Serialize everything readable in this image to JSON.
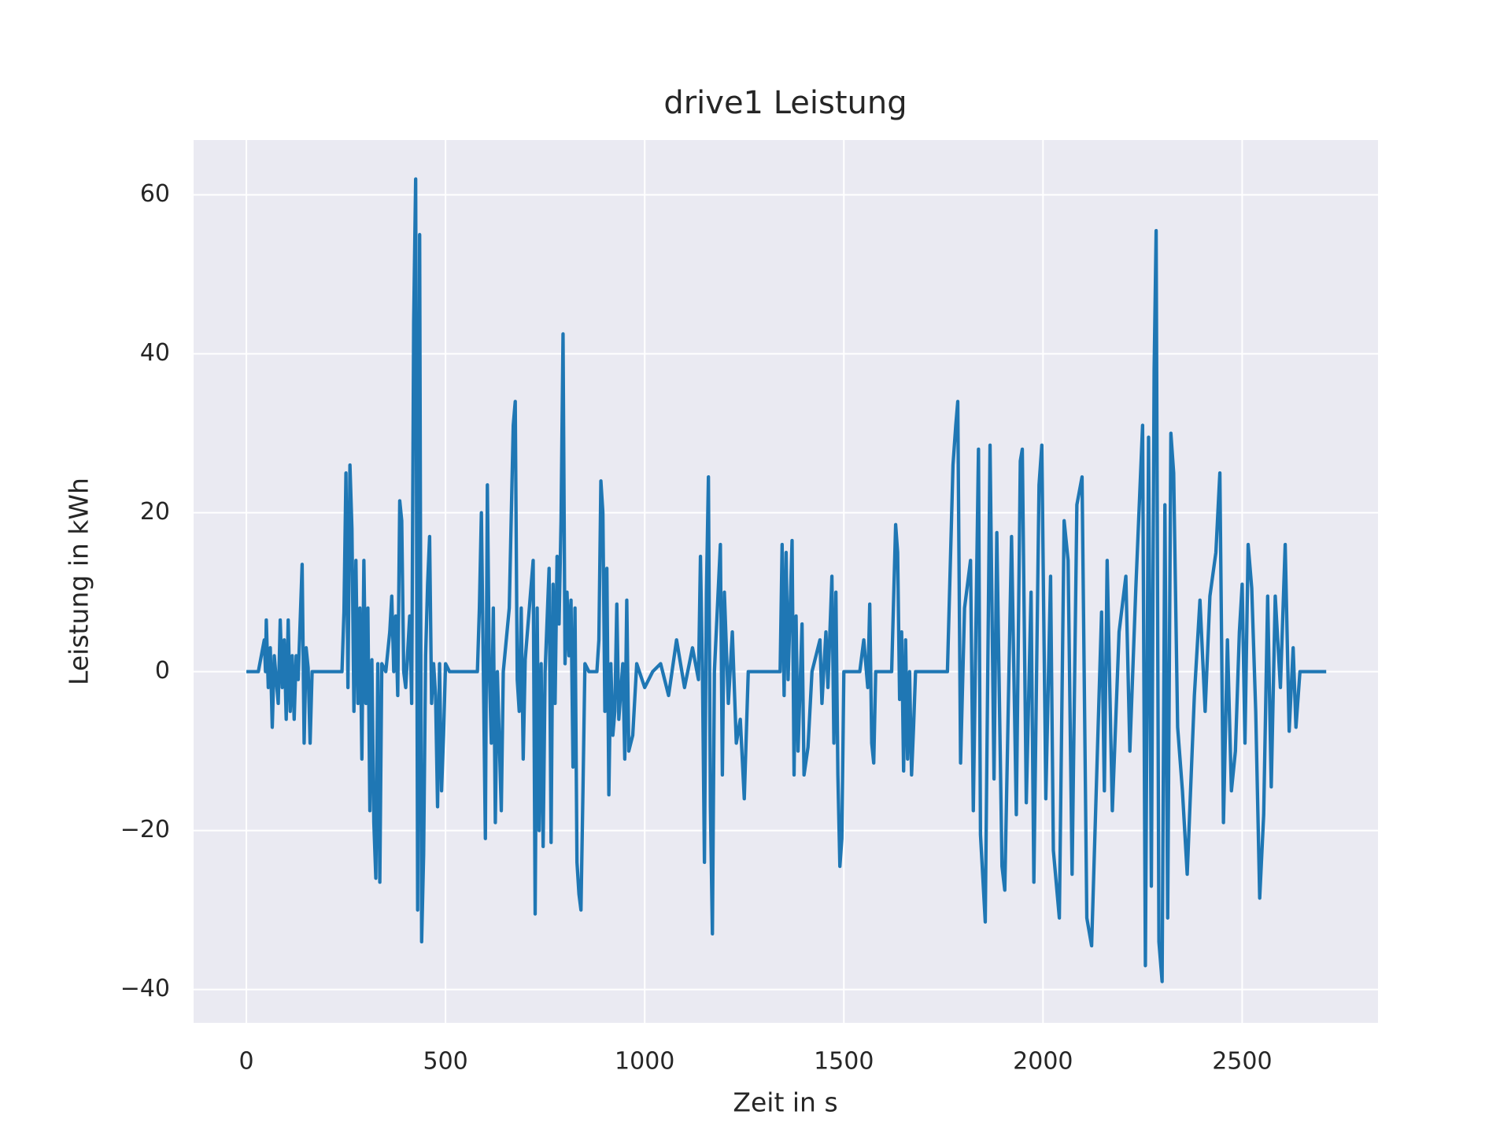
{
  "chart_data": {
    "type": "line",
    "title": "drive1 Leistung",
    "x_label": "Zeit in s",
    "y_label": "Leistung in kWh",
    "x": [
      0,
      30,
      45,
      48,
      50,
      55,
      60,
      65,
      70,
      80,
      85,
      90,
      95,
      100,
      105,
      110,
      115,
      120,
      125,
      130,
      140,
      145,
      150,
      155,
      160,
      165,
      175,
      240,
      245,
      250,
      255,
      260,
      265,
      270,
      275,
      280,
      285,
      290,
      295,
      300,
      305,
      310,
      315,
      320,
      325,
      330,
      335,
      340,
      350,
      360,
      365,
      370,
      375,
      380,
      385,
      390,
      395,
      400,
      410,
      415,
      420,
      425,
      430,
      435,
      440,
      445,
      450,
      455,
      460,
      465,
      470,
      475,
      480,
      485,
      490,
      495,
      500,
      510,
      580,
      585,
      590,
      595,
      600,
      605,
      610,
      615,
      620,
      625,
      630,
      640,
      645,
      660,
      665,
      670,
      675,
      680,
      685,
      690,
      695,
      700,
      720,
      725,
      730,
      735,
      740,
      745,
      750,
      760,
      765,
      770,
      775,
      780,
      785,
      790,
      795,
      800,
      805,
      810,
      815,
      820,
      825,
      830,
      835,
      840,
      845,
      850,
      860,
      880,
      885,
      890,
      895,
      900,
      905,
      910,
      915,
      920,
      925,
      930,
      935,
      945,
      950,
      955,
      960,
      970,
      980,
      1000,
      1020,
      1040,
      1060,
      1080,
      1100,
      1120,
      1135,
      1140,
      1145,
      1150,
      1155,
      1160,
      1165,
      1170,
      1175,
      1190,
      1195,
      1200,
      1210,
      1220,
      1230,
      1240,
      1250,
      1260,
      1280,
      1340,
      1345,
      1350,
      1355,
      1360,
      1370,
      1375,
      1380,
      1385,
      1395,
      1400,
      1410,
      1420,
      1440,
      1445,
      1455,
      1460,
      1470,
      1475,
      1480,
      1485,
      1490,
      1495,
      1500,
      1540,
      1550,
      1560,
      1565,
      1570,
      1575,
      1580,
      1620,
      1630,
      1635,
      1640,
      1645,
      1650,
      1655,
      1660,
      1665,
      1670,
      1675,
      1680,
      1760,
      1774,
      1781,
      1786,
      1793,
      1803,
      1818,
      1825,
      1838,
      1843,
      1855,
      1867,
      1877,
      1884,
      1897,
      1904,
      1921,
      1933,
      1943,
      1948,
      1958,
      1970,
      1977,
      1990,
      1997,
      2007,
      2019,
      2026,
      2041,
      2053,
      2063,
      2073,
      2085,
      2098,
      2110,
      2122,
      2147,
      2154,
      2161,
      2174,
      2191,
      2208,
      2218,
      2233,
      2250,
      2257,
      2265,
      2272,
      2279,
      2284,
      2291,
      2299,
      2306,
      2313,
      2321,
      2328,
      2338,
      2350,
      2362,
      2380,
      2394,
      2407,
      2419,
      2434,
      2444,
      2453,
      2463,
      2473,
      2483,
      2493,
      2500,
      2507,
      2515,
      2524,
      2534,
      2544,
      2554,
      2564,
      2573,
      2583,
      2596,
      2608,
      2618,
      2628,
      2635,
      2645,
      2711
    ],
    "values": [
      0,
      0,
      4,
      0,
      6.5,
      -2,
      3,
      -7,
      2,
      -4,
      6.5,
      -2,
      4,
      -6,
      6.5,
      -5,
      2,
      -6,
      2,
      -1,
      13.5,
      -9,
      3,
      0.5,
      -9,
      0,
      0,
      0,
      7.5,
      25,
      -2,
      26,
      18,
      -5,
      14,
      -4,
      8,
      -11,
      14,
      -4,
      8,
      -17.5,
      1.5,
      -19,
      -26,
      1,
      -26.5,
      1,
      0,
      5,
      9.5,
      0,
      7,
      -3,
      21.5,
      19,
      0,
      -2,
      7,
      -4,
      44,
      62,
      -30,
      55,
      -34,
      -23,
      2,
      11,
      17,
      -4,
      1,
      -3,
      -17,
      1,
      -15,
      -8,
      1,
      0,
      0,
      8,
      20,
      0,
      -21,
      23.5,
      0,
      -9,
      8,
      -19,
      0,
      -17.5,
      0,
      8,
      19.5,
      31,
      34,
      -1,
      -5,
      8,
      -11,
      1.5,
      14,
      -30.5,
      8,
      -20,
      1,
      -22,
      0,
      13,
      -21.5,
      11,
      -4,
      14.5,
      6,
      19,
      42.5,
      1,
      10,
      2,
      9,
      -12,
      8,
      -24,
      -28,
      -30,
      -15,
      1,
      0,
      0,
      4,
      24,
      20,
      -5,
      13,
      -15.5,
      1,
      -8,
      -5,
      8.5,
      -6,
      1,
      -11,
      9,
      -10,
      -8,
      1,
      -2,
      0,
      1,
      -3,
      4,
      -2,
      3,
      -1,
      14.5,
      0,
      -24,
      10,
      24.5,
      -17,
      -33,
      0,
      16,
      -13,
      10,
      -4,
      5,
      -9,
      -6,
      -16,
      0,
      0,
      0,
      16,
      -3,
      15,
      -1,
      16.5,
      -13,
      7,
      -10,
      6,
      -13,
      -9.5,
      0,
      4,
      -4,
      5,
      -2,
      12,
      -9,
      10,
      -13,
      -24.5,
      -21,
      0,
      0,
      4,
      -2,
      8.5,
      -9,
      -11.5,
      0,
      0,
      18.5,
      15,
      -3.5,
      5,
      -12.5,
      4,
      -11,
      0,
      -13,
      -7,
      0,
      0,
      26,
      31,
      34,
      -11.5,
      8,
      14,
      -17.5,
      28,
      -20.5,
      -31.5,
      28.5,
      -13.5,
      17.5,
      -24.5,
      -27.5,
      17,
      -18,
      26.5,
      28,
      -16.5,
      10,
      -26.5,
      23.5,
      28.5,
      -16,
      12,
      -22.5,
      -31,
      19,
      14,
      -25.5,
      21,
      24.5,
      -31,
      -34.5,
      7.5,
      -15,
      14,
      -17.5,
      5,
      12,
      -10,
      10.5,
      31,
      -37,
      29.5,
      -27,
      38,
      55.5,
      -34,
      -39,
      21,
      -31,
      30,
      25,
      -7,
      -15,
      -25.5,
      -3,
      9,
      -5,
      9.5,
      15,
      25,
      -19,
      4,
      -15,
      -10,
      5,
      11,
      -9,
      16,
      10.5,
      -5,
      -28.5,
      -18,
      9.5,
      -14.5,
      9.5,
      -2,
      16,
      -7.5,
      3,
      -7,
      0,
      0
    ],
    "color": "#1f77b4",
    "xlim": [
      -132.5,
      2841
    ],
    "xticks": [
      0,
      500,
      1000,
      1500,
      2000,
      2500
    ],
    "ylim": [
      -44.2,
      66.9
    ],
    "yticks": [
      {
        "value": -40,
        "label": "−40"
      },
      {
        "value": -20,
        "label": "−20"
      },
      0,
      20,
      40,
      60
    ],
    "grid": true
  }
}
